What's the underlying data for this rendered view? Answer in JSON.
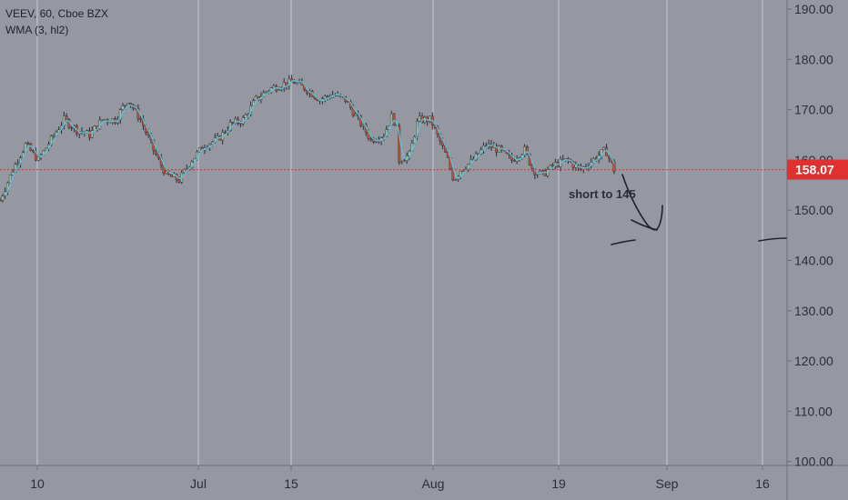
{
  "legend": {
    "symbol_line": "VEEV, 60, Cboe BZX",
    "indicator_line": "WMA (3, hl2)"
  },
  "annotation": {
    "text": "short to 145"
  },
  "colors": {
    "background": "#9598a1",
    "grid": "#c9ccd3",
    "up_candle": "#a8b8a0",
    "down_candle": "#c0503a",
    "wick": "#2a2e39",
    "wma_line": "#5ec8d8",
    "price_line": "#e03030",
    "price_tag": "#e03030",
    "axis_text": "#2a2e39",
    "drawing": "#1e222d"
  },
  "chart_data": {
    "type": "candlestick",
    "symbol": "VEEV",
    "interval": "60",
    "exchange": "Cboe BZX",
    "indicator": "WMA (3, hl2)",
    "ylim": [
      100,
      190
    ],
    "y_ticks": [
      "190.00",
      "180.00",
      "170.00",
      "160.00",
      "150.00",
      "140.00",
      "130.00",
      "120.00",
      "110.00",
      "100.00"
    ],
    "x_ticks": [
      "10",
      "Jul",
      "15",
      "Aug",
      "19",
      "Sep",
      "16"
    ],
    "last_price": "158.07",
    "price_path": [
      [
        0,
        152
      ],
      [
        1.5,
        158
      ],
      [
        3,
        163
      ],
      [
        4.5,
        160
      ],
      [
        6,
        164
      ],
      [
        7.5,
        168
      ],
      [
        9,
        166
      ],
      [
        10.5,
        165
      ],
      [
        12,
        168
      ],
      [
        13.5,
        168
      ],
      [
        15,
        172
      ],
      [
        16.5,
        168
      ],
      [
        18,
        162
      ],
      [
        19.5,
        157
      ],
      [
        21,
        156
      ],
      [
        22.5,
        160
      ],
      [
        24,
        163
      ],
      [
        25.5,
        164
      ],
      [
        27,
        167
      ],
      [
        28.5,
        168
      ],
      [
        30,
        172
      ],
      [
        31.5,
        174
      ],
      [
        33,
        175
      ],
      [
        34.5,
        175.5
      ],
      [
        36,
        174
      ],
      [
        37.5,
        172
      ],
      [
        39,
        173
      ],
      [
        40.5,
        172
      ],
      [
        42,
        168
      ],
      [
        43.5,
        164
      ],
      [
        45,
        165
      ],
      [
        46,
        169
      ],
      [
        46.5,
        166
      ],
      [
        46.8,
        160
      ],
      [
        48,
        161
      ],
      [
        49,
        168
      ],
      [
        50.5,
        168
      ],
      [
        51.5,
        164
      ],
      [
        52.5,
        160
      ],
      [
        53.2,
        156
      ],
      [
        54,
        158
      ],
      [
        55.5,
        160
      ],
      [
        57,
        163
      ],
      [
        58.5,
        162
      ],
      [
        60,
        160
      ],
      [
        61.5,
        162
      ],
      [
        62.5,
        158
      ],
      [
        63.5,
        157
      ],
      [
        65,
        159
      ],
      [
        66.5,
        160
      ],
      [
        68,
        158
      ],
      [
        69.5,
        160
      ],
      [
        71,
        162
      ],
      [
        72,
        158
      ]
    ]
  }
}
